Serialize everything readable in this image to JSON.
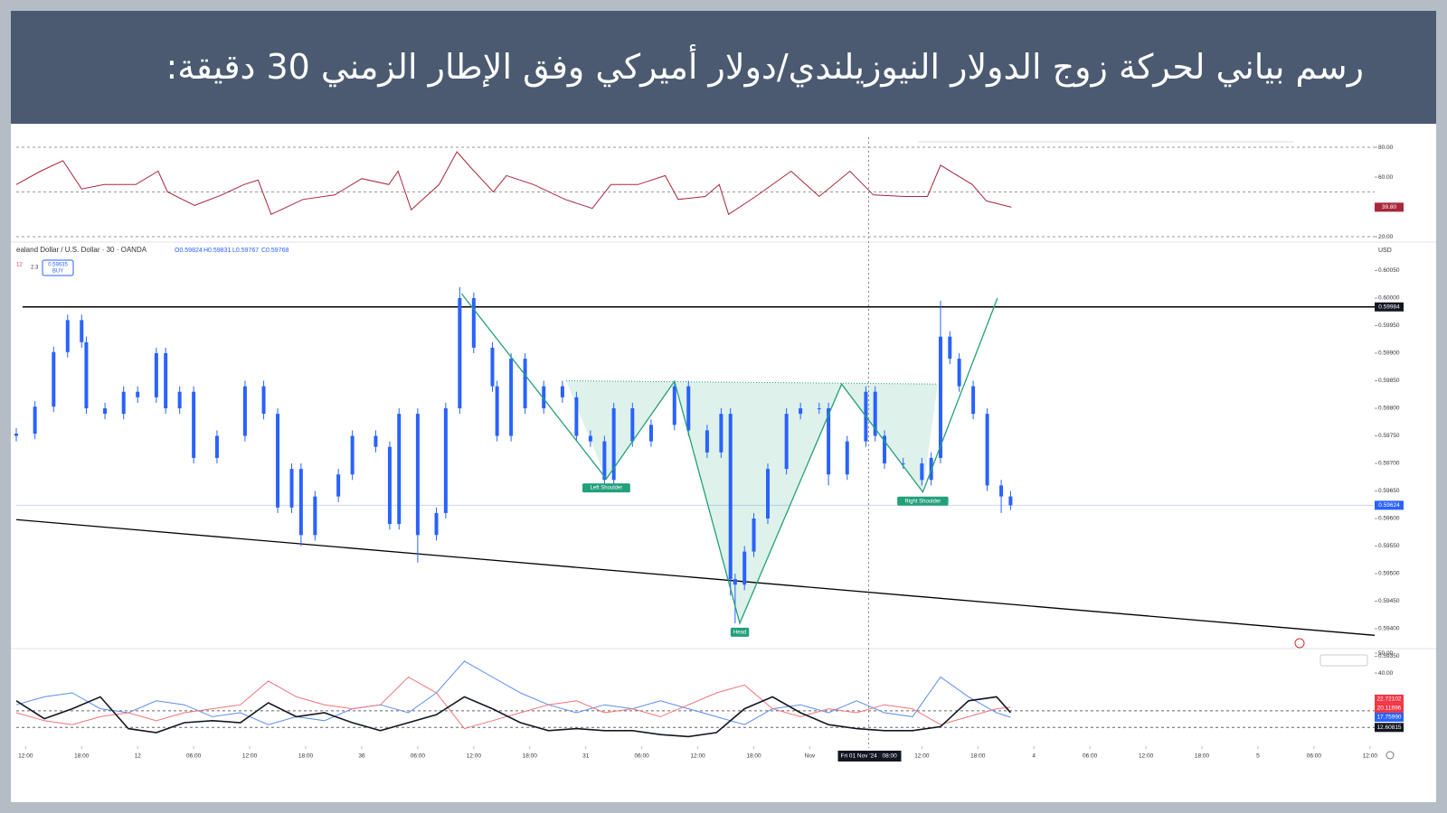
{
  "title": "رسم بياني لحركة زوج الدولار النيوزيلندي/دولار أميركي وفق الإطار الزمني 30 دقيقة:",
  "chart_data": [
    {
      "type": "line",
      "color": "#a8283a",
      "xlim": [
        -1,
        144.5
      ],
      "ylim": [
        17.6,
        86.7
      ],
      "yticks": [
        {
          "value": 80,
          "label": "80.00"
        },
        {
          "value": 60,
          "label": "60.00"
        },
        {
          "value": 20,
          "label": "20.00"
        }
      ],
      "bands": [
        80,
        50,
        20
      ],
      "last_value": {
        "value": 39.8,
        "label": "39.80"
      },
      "x": [
        -1,
        1.6,
        4,
        6,
        8.4,
        11.8,
        14.2,
        15.2,
        18.1,
        21,
        23.4,
        24.9,
        26.3,
        29.7,
        33.1,
        36,
        38.9,
        39.9,
        41.3,
        44.3,
        46.2,
        47.6,
        50.1,
        51.5,
        54.4,
        57.8,
        60.7,
        62.7,
        65.6,
        68.5,
        69.9,
        72.8,
        74.3,
        75.3,
        78.2,
        82,
        85,
        88.3,
        90.8,
        94.2,
        96.6,
        98,
        101.4,
        102.9,
        105.6
      ],
      "values": [
        55,
        64,
        71,
        52,
        55,
        55,
        64,
        50,
        41,
        48,
        55,
        58,
        35,
        45,
        48,
        59,
        55,
        64,
        38,
        55,
        77,
        67,
        50,
        61,
        55,
        45,
        39,
        55,
        55,
        61,
        45,
        47,
        55,
        35,
        47,
        64,
        47,
        64,
        48,
        47,
        47,
        68,
        55,
        44,
        39.8
      ]
    },
    {
      "type": "candlestick",
      "symbol": "ealand Dollar / U.S. Dollar · 30 · OANDA",
      "ohlc_legend": [
        "O0.59824",
        "H0.59831",
        "L0.59767",
        "C0.59768"
      ],
      "quantity": "12",
      "spread": 2.3,
      "buy_price": 0.59635,
      "buy_label": "BUY",
      "currency": "USD",
      "color": "#2962ff",
      "xlim": [
        -1,
        144.5
      ],
      "ylim": [
        0.5934,
        0.6006
      ],
      "yticks": [
        {
          "value": 0.6005,
          "label": "0.60050"
        },
        {
          "value": 0.6,
          "label": "0.60000"
        },
        {
          "value": 0.5995,
          "label": "0.59950"
        },
        {
          "value": 0.599,
          "label": "0.59900"
        },
        {
          "value": 0.5985,
          "label": "0.59850"
        },
        {
          "value": 0.598,
          "label": "0.59800"
        },
        {
          "value": 0.5975,
          "label": "0.59750"
        },
        {
          "value": 0.597,
          "label": "0.59700"
        },
        {
          "value": 0.5965,
          "label": "0.59650"
        },
        {
          "value": 0.596,
          "label": "0.59600"
        },
        {
          "value": 0.5955,
          "label": "0.59550"
        },
        {
          "value": 0.595,
          "label": "0.59500"
        },
        {
          "value": 0.5945,
          "label": "0.59450"
        },
        {
          "value": 0.594,
          "label": "0.59400"
        },
        {
          "value": 0.5935,
          "label": "0.59350"
        }
      ],
      "x": [
        -1,
        1,
        3,
        4.5,
        6,
        6.5,
        8.5,
        10.5,
        12,
        14,
        15,
        16.5,
        18,
        20.5,
        23.5,
        25.5,
        27,
        28.5,
        29.5,
        31,
        33.5,
        35,
        37.5,
        39,
        40,
        42,
        44,
        45,
        46.5,
        48,
        50,
        50.5,
        52,
        53.5,
        55.5,
        57.5,
        59,
        60.5,
        62,
        63,
        65,
        67,
        69.5,
        71,
        73,
        74.5,
        75.5,
        76,
        77,
        78,
        79.5,
        81.5,
        83,
        85,
        86,
        88,
        90,
        91,
        92,
        94,
        96,
        97,
        98,
        99,
        100,
        101.5,
        103,
        104.5,
        105.5
      ],
      "open": [
        0.5975,
        0.59754,
        0.59803,
        0.59902,
        0.5996,
        0.5992,
        0.598,
        0.5979,
        0.5983,
        0.5982,
        0.599,
        0.598,
        0.5983,
        0.5971,
        0.5975,
        0.5984,
        0.5979,
        0.5962,
        0.5969,
        0.5957,
        0.5964,
        0.5968,
        0.5975,
        0.5973,
        0.5959,
        0.5979,
        0.5957,
        0.5961,
        0.598,
        0.6,
        0.5991,
        0.5984,
        0.5975,
        0.5989,
        0.598,
        0.5984,
        0.5982,
        0.5975,
        0.5974,
        0.5967,
        0.598,
        0.5974,
        0.5977,
        0.5984,
        0.5976,
        0.5972,
        0.5979,
        0.5949,
        0.5948,
        0.5954,
        0.596,
        0.5969,
        0.5979,
        0.598,
        0.598,
        0.5968,
        0.5974,
        0.5983,
        0.5975,
        0.597,
        0.597,
        0.5967,
        0.5971,
        0.5993,
        0.5989,
        0.5984,
        0.5979,
        0.5966,
        0.5964
      ],
      "high": [
        0.59764,
        0.59813,
        0.59912,
        0.5997,
        0.5997,
        0.5993,
        0.5981,
        0.5984,
        0.5984,
        0.5991,
        0.5991,
        0.5984,
        0.5984,
        0.5976,
        0.5985,
        0.5985,
        0.598,
        0.597,
        0.597,
        0.5965,
        0.5969,
        0.5976,
        0.5976,
        0.5974,
        0.598,
        0.598,
        0.5962,
        0.5981,
        0.6002,
        0.6001,
        0.5992,
        0.5985,
        0.599,
        0.599,
        0.5985,
        0.5985,
        0.5983,
        0.5976,
        0.5975,
        0.5981,
        0.5981,
        0.5978,
        0.5985,
        0.5985,
        0.5977,
        0.598,
        0.598,
        0.595,
        0.5955,
        0.5961,
        0.597,
        0.598,
        0.5981,
        0.5981,
        0.5981,
        0.5975,
        0.5984,
        0.5984,
        0.5976,
        0.5971,
        0.5971,
        0.5972,
        0.59995,
        0.5994,
        0.599,
        0.5985,
        0.598,
        0.5967,
        0.5965
      ],
      "low": [
        0.5974,
        0.59744,
        0.59793,
        0.59892,
        0.5991,
        0.5979,
        0.5978,
        0.5978,
        0.5981,
        0.5981,
        0.5979,
        0.5979,
        0.597,
        0.597,
        0.5974,
        0.5978,
        0.5961,
        0.5961,
        0.5955,
        0.5956,
        0.5963,
        0.5967,
        0.5972,
        0.5958,
        0.5958,
        0.5952,
        0.5956,
        0.596,
        0.5979,
        0.599,
        0.5983,
        0.5974,
        0.5974,
        0.5979,
        0.5979,
        0.5981,
        0.5974,
        0.5973,
        0.5966,
        0.5966,
        0.5973,
        0.5973,
        0.5976,
        0.5975,
        0.5971,
        0.5971,
        0.5946,
        0.5941,
        0.5947,
        0.5953,
        0.5959,
        0.5968,
        0.5978,
        0.5979,
        0.5966,
        0.5967,
        0.5973,
        0.5974,
        0.5969,
        0.5969,
        0.5966,
        0.5966,
        0.597,
        0.5988,
        0.5983,
        0.5978,
        0.5965,
        0.5961,
        0.59615
      ],
      "close": [
        0.59754,
        0.59803,
        0.59902,
        0.5996,
        0.5992,
        0.598,
        0.5979,
        0.5983,
        0.5982,
        0.599,
        0.598,
        0.5983,
        0.5971,
        0.5975,
        0.5984,
        0.5979,
        0.5962,
        0.5969,
        0.5957,
        0.5964,
        0.5968,
        0.5975,
        0.5973,
        0.5959,
        0.5979,
        0.5957,
        0.5961,
        0.598,
        0.6,
        0.5991,
        0.5984,
        0.5975,
        0.5989,
        0.598,
        0.5984,
        0.5982,
        0.5975,
        0.5974,
        0.5967,
        0.598,
        0.5974,
        0.5977,
        0.5984,
        0.5976,
        0.5972,
        0.5979,
        0.5949,
        0.5948,
        0.5954,
        0.596,
        0.5969,
        0.5979,
        0.598,
        0.598,
        0.5968,
        0.5974,
        0.5983,
        0.5975,
        0.597,
        0.597,
        0.5967,
        0.5971,
        0.5993,
        0.5989,
        0.5984,
        0.5979,
        0.5966,
        0.5964,
        0.59624
      ],
      "last_price": 0.59624,
      "resistance": 0.59984,
      "support": {
        "x": [
          -1,
          144.5
        ],
        "y": [
          0.59598,
          0.59388
        ]
      },
      "pattern": {
        "color": "#22a07a",
        "points": [
          {
            "x": 46.7,
            "y": 0.60008
          },
          {
            "x": 62.2,
            "y": 0.59672,
            "label": "Left Shoulder"
          },
          {
            "x": 69.5,
            "y": 0.59849
          },
          {
            "x": 76.5,
            "y": 0.5941,
            "label": "Head"
          },
          {
            "x": 87.4,
            "y": 0.59844
          },
          {
            "x": 96.1,
            "y": 0.59648,
            "label": "Right Shoulder"
          },
          {
            "x": 104.1,
            "y": 0.6
          }
        ],
        "neckline": {
          "x": [
            57.9,
            97.7
          ],
          "y": [
            0.5985,
            0.59844
          ]
        }
      },
      "cursor": {
        "x": 90.3,
        "date": "Fri 01 Nov '24",
        "time": "08:00"
      }
    },
    {
      "type": "line",
      "xlim": [
        -1,
        144.5
      ],
      "ylim": [
        5,
        51.4
      ],
      "yticks": [
        {
          "value": 50,
          "label": "50.00"
        },
        {
          "value": 40,
          "label": "40.00"
        }
      ],
      "levels": [
        21,
        12.60815
      ],
      "x": [
        -1,
        2,
        5,
        8,
        11,
        14,
        17,
        20,
        23,
        26,
        29,
        32,
        35,
        38,
        41,
        44,
        47,
        50,
        53,
        56,
        59,
        62,
        65,
        68,
        71,
        74,
        77,
        80,
        83,
        86,
        89,
        92,
        95,
        98,
        101,
        104,
        105.5
      ],
      "series": [
        {
          "color": "#5b8def",
          "values": [
            24,
            28,
            30,
            22,
            20,
            26,
            24,
            18,
            20,
            14,
            18,
            16,
            22,
            24,
            20,
            30,
            46,
            38,
            30,
            24,
            20,
            24,
            22,
            26,
            22,
            18,
            14,
            22,
            24,
            20,
            26,
            20,
            18,
            38,
            28,
            20,
            17.7599
          ]
        },
        {
          "color": "#f0737c",
          "values": [
            20,
            16,
            14,
            18,
            20,
            16,
            20,
            22,
            24,
            36,
            28,
            24,
            22,
            24,
            38,
            30,
            12,
            16,
            20,
            24,
            26,
            20,
            22,
            18,
            24,
            30,
            34,
            22,
            18,
            22,
            20,
            24,
            22,
            14,
            18,
            22,
            22.72102
          ]
        },
        {
          "color": "#131722",
          "values": [
            26,
            17,
            22,
            28,
            12,
            10,
            15,
            16,
            15,
            25,
            18,
            20,
            15,
            11,
            15,
            19,
            28,
            22,
            15,
            11,
            12,
            11,
            11,
            9,
            8,
            10,
            22,
            28,
            20,
            14,
            12,
            11,
            11,
            13,
            26,
            28,
            20.11696
          ]
        }
      ],
      "badges": [
        22.72102,
        20.11696,
        {
          "value": 17.7599,
          "label": "17.75990"
        },
        12.60815
      ],
      "badge_colors": [
        "#f23645",
        "#f23645",
        "#2962ff",
        "#131722"
      ],
      "xticks": [
        {
          "value": 0,
          "label": "12:00"
        },
        {
          "value": 6,
          "label": "18:00"
        },
        12,
        {
          "value": 18,
          "label": "06:00"
        },
        {
          "value": 24,
          "label": "12:00"
        },
        {
          "value": 30,
          "label": "18:00"
        },
        36,
        {
          "value": 42,
          "label": "06:00"
        },
        {
          "value": 48,
          "label": "12:00"
        },
        {
          "value": 54,
          "label": "18:00"
        },
        {
          "value": 60,
          "label": "31"
        },
        {
          "value": 66,
          "label": "06:00"
        },
        {
          "value": 72,
          "label": "12:00"
        },
        {
          "value": 78,
          "label": "18:00"
        },
        {
          "value": 84,
          "label": "Nov"
        },
        {
          "value": 96,
          "label": "12:00"
        },
        {
          "value": 102,
          "label": "18:00"
        },
        {
          "value": 108,
          "label": "4"
        },
        {
          "value": 114,
          "label": "06:00"
        },
        {
          "value": 120,
          "label": "12:00"
        },
        {
          "value": 126,
          "label": "18:00"
        },
        {
          "value": 132,
          "label": "5"
        },
        {
          "value": 138,
          "label": "06:00"
        },
        {
          "value": 144,
          "label": "12:00"
        }
      ]
    }
  ]
}
